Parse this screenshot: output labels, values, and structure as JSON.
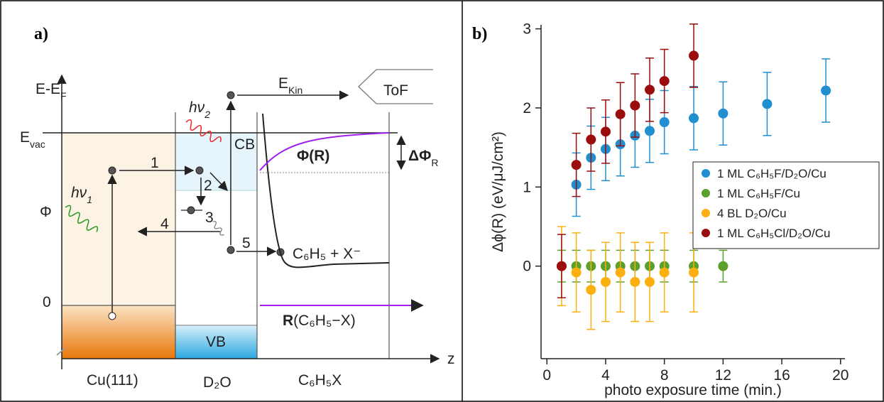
{
  "diagram": {
    "panel_label": "a)",
    "energy_axis": [
      "E-E",
      "F"
    ],
    "vacuum_level": [
      "E",
      "vac"
    ],
    "kinetic_energy": [
      "E",
      "Kin"
    ],
    "work_function": "Φ",
    "zero": "0",
    "photon_1": [
      "hν",
      "1"
    ],
    "photon_2": [
      "hν",
      "2"
    ],
    "steps": [
      "1",
      "2",
      "3",
      "4",
      "5"
    ],
    "conduction_band": "CB",
    "valence_band": "VB",
    "detector": "ToF",
    "potential": "Φ(R)",
    "work_function_change": [
      "ΔΦ",
      "R"
    ],
    "products": "C₆H₅ + X⁻",
    "coordinate": [
      "R",
      "(C₆H₅−X)"
    ],
    "z_axis": "z",
    "regions": [
      "Cu(111)",
      "D₂O",
      "C₆H₅X"
    ]
  },
  "chart_data": {
    "type": "scatter",
    "panel_label": "b)",
    "xlabel": "photo exposure time (min.)",
    "ylabel": "Δϕ(R) (eV/μJ/cm²)",
    "xlim": [
      -0.4,
      20.3
    ],
    "ylim": [
      -1.17,
      3.05
    ],
    "xticks": [
      0,
      4,
      8,
      12,
      16,
      20
    ],
    "yticks": [
      0,
      1,
      2,
      3
    ],
    "legend_position": "center-right",
    "series": [
      {
        "name": "1 ML C₆H₅F/D₂O/Cu",
        "color": "#1f8fd0",
        "x": [
          2,
          3,
          4,
          5,
          6,
          7,
          8,
          10,
          12,
          15,
          19
        ],
        "values": [
          1.03,
          1.37,
          1.48,
          1.54,
          1.65,
          1.71,
          1.82,
          1.87,
          1.93,
          2.05,
          2.22
        ],
        "errors": [
          0.4,
          0.4,
          0.4,
          0.4,
          0.4,
          0.4,
          0.4,
          0.4,
          0.4,
          0.4,
          0.4
        ]
      },
      {
        "name": "1 ML C₆H₅F/Cu",
        "color": "#5aa02c",
        "x": [
          1,
          2,
          3,
          4,
          5,
          6,
          7,
          8,
          10,
          12
        ],
        "values": [
          0,
          0,
          0,
          0,
          0,
          0,
          0,
          0,
          0,
          0
        ],
        "errors": [
          0.2,
          0.2,
          0.2,
          0.2,
          0.2,
          0.2,
          0.2,
          0.2,
          0.2,
          0.2
        ]
      },
      {
        "name": "4 BL D₂O/Cu",
        "color": "#fcb010",
        "x": [
          1,
          2,
          3,
          4,
          5,
          6,
          7,
          8,
          10
        ],
        "values": [
          0,
          -0.08,
          -0.3,
          -0.2,
          -0.08,
          -0.2,
          -0.2,
          -0.08,
          -0.08
        ],
        "errors": [
          0.5,
          0.5,
          0.5,
          0.5,
          0.5,
          0.5,
          0.5,
          0.5,
          0.5
        ]
      },
      {
        "name": "1 ML C₆H₅Cl/D₂O/Cu",
        "color": "#9b0d0d",
        "x": [
          1,
          2,
          3,
          4,
          5,
          6,
          7,
          8,
          10
        ],
        "values": [
          0,
          1.28,
          1.6,
          1.7,
          1.92,
          2.03,
          2.23,
          2.34,
          2.66
        ],
        "errors": [
          0.4,
          0.4,
          0.4,
          0.4,
          0.4,
          0.4,
          0.4,
          0.4,
          0.4
        ]
      }
    ]
  }
}
